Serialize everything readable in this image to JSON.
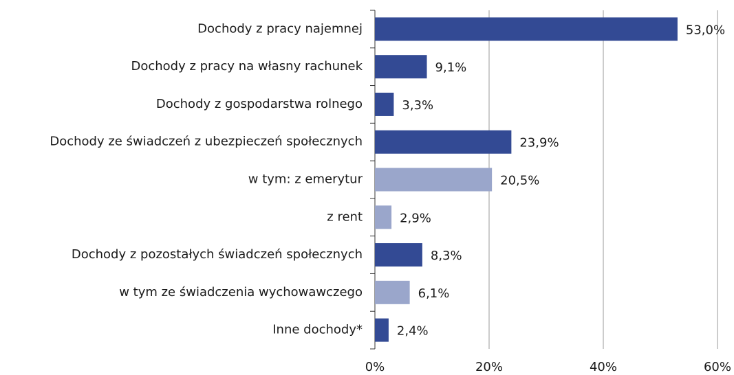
{
  "chart_data": {
    "type": "barh",
    "categories": [
      "Dochody z pracy najemnej",
      "Dochody z pracy na własny rachunek",
      "Dochody z gospodarstwa rolnego",
      "Dochody ze świadczeń z ubezpieczeń społecznych",
      "w tym: z emerytur",
      "z rent",
      "Dochody z pozostałych świadczeń społecznych",
      "w tym ze świadczenia wychowawczego",
      "Inne dochody*"
    ],
    "values": [
      53.0,
      9.1,
      3.3,
      23.9,
      20.5,
      2.9,
      8.3,
      6.1,
      2.4
    ],
    "value_labels": [
      "53,0%",
      "9,1%",
      "3,3%",
      "23,9%",
      "20,5%",
      "2,9%",
      "8,3%",
      "6,1%",
      "2,4%"
    ],
    "colors": [
      "#334a94",
      "#334a94",
      "#334a94",
      "#334a94",
      "#9aa6cb",
      "#9aa6cb",
      "#334a94",
      "#9aa6cb",
      "#334a94"
    ],
    "xlim": [
      0,
      60
    ],
    "xticks": [
      {
        "value": 0,
        "label": "0%"
      },
      {
        "value": 20,
        "label": "20%"
      },
      {
        "value": 40,
        "label": "40%"
      },
      {
        "value": 60,
        "label": "60%"
      }
    ],
    "grid": true
  }
}
